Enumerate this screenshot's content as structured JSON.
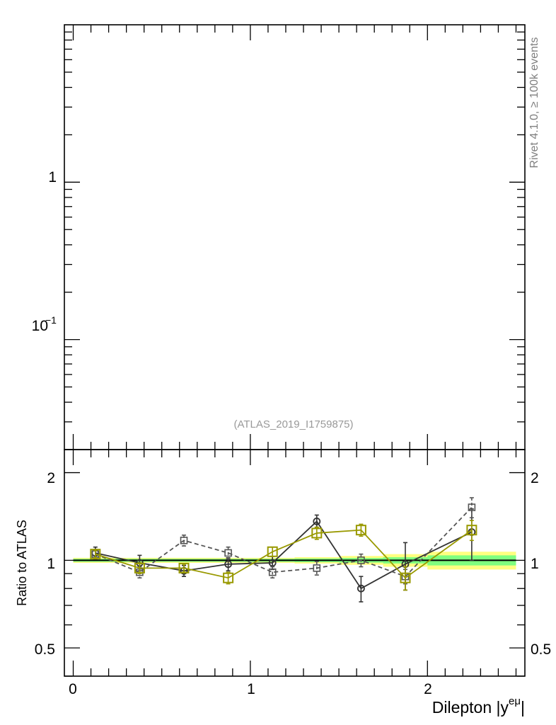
{
  "rivet_label": "Rivet 4.1.0, ≥ 100k events",
  "analysis_label": "(ATLAS_2019_I1759875)",
  "main_panel": {
    "y_scale": "log",
    "ylim": [
      0.02,
      10
    ],
    "y_tick_labels": [
      "1",
      "10",
      "−1"
    ]
  },
  "chart_data": {
    "type": "line",
    "xlabel": "Dilepton |y",
    "xlabel_sup": "eμ",
    "xlabel_end": "|",
    "ylabel": "Ratio to ATLAS",
    "xlim": [
      -0.05,
      2.55
    ],
    "ylim": [
      0.4,
      2.4
    ],
    "y_scale": "log",
    "x_tick_labels": [
      "0",
      "1",
      "2"
    ],
    "y_tick_labels": [
      "0.5",
      "1",
      "2"
    ],
    "reference_line": 1,
    "reference_bands": [
      {
        "x": [
          0.0,
          0.25,
          0.5,
          0.75,
          1.0,
          1.25,
          1.5,
          1.75,
          2.0,
          2.5
        ],
        "inner": [
          0.012,
          0.012,
          0.012,
          0.012,
          0.012,
          0.015,
          0.018,
          0.025,
          0.04,
          0.05
        ],
        "outer": [
          0.02,
          0.02,
          0.02,
          0.02,
          0.02,
          0.025,
          0.035,
          0.05,
          0.07,
          0.09
        ]
      }
    ],
    "series": [
      {
        "style": "solid-circle",
        "color": "#333333",
        "x": [
          0.125,
          0.375,
          0.625,
          0.875,
          1.125,
          1.375,
          1.625,
          1.875,
          2.25
        ],
        "y": [
          1.06,
          0.98,
          0.92,
          0.97,
          0.98,
          1.36,
          0.8,
          0.97,
          1.25
        ],
        "err": [
          0.05,
          0.06,
          0.04,
          0.05,
          0.05,
          0.07,
          0.08,
          0.18,
          0.25
        ]
      },
      {
        "style": "dashed-square",
        "color": "#555555",
        "x": [
          0.125,
          0.375,
          0.625,
          0.875,
          1.125,
          1.375,
          1.625,
          1.875,
          2.25
        ],
        "y": [
          1.05,
          0.91,
          1.17,
          1.06,
          0.91,
          0.94,
          1.0,
          0.88,
          1.52
        ],
        "err": [
          0.04,
          0.04,
          0.05,
          0.05,
          0.04,
          0.05,
          0.05,
          0.05,
          0.12
        ]
      },
      {
        "style": "solid-square-large",
        "color": "#999900",
        "x": [
          0.125,
          0.375,
          0.625,
          0.875,
          1.125,
          1.375,
          1.625,
          1.875,
          2.25
        ],
        "y": [
          1.05,
          0.94,
          0.94,
          0.87,
          1.07,
          1.24,
          1.27,
          0.87,
          1.27
        ],
        "err": [
          0.03,
          0.04,
          0.03,
          0.04,
          0.04,
          0.06,
          0.06,
          0.08,
          0.1
        ]
      }
    ]
  }
}
